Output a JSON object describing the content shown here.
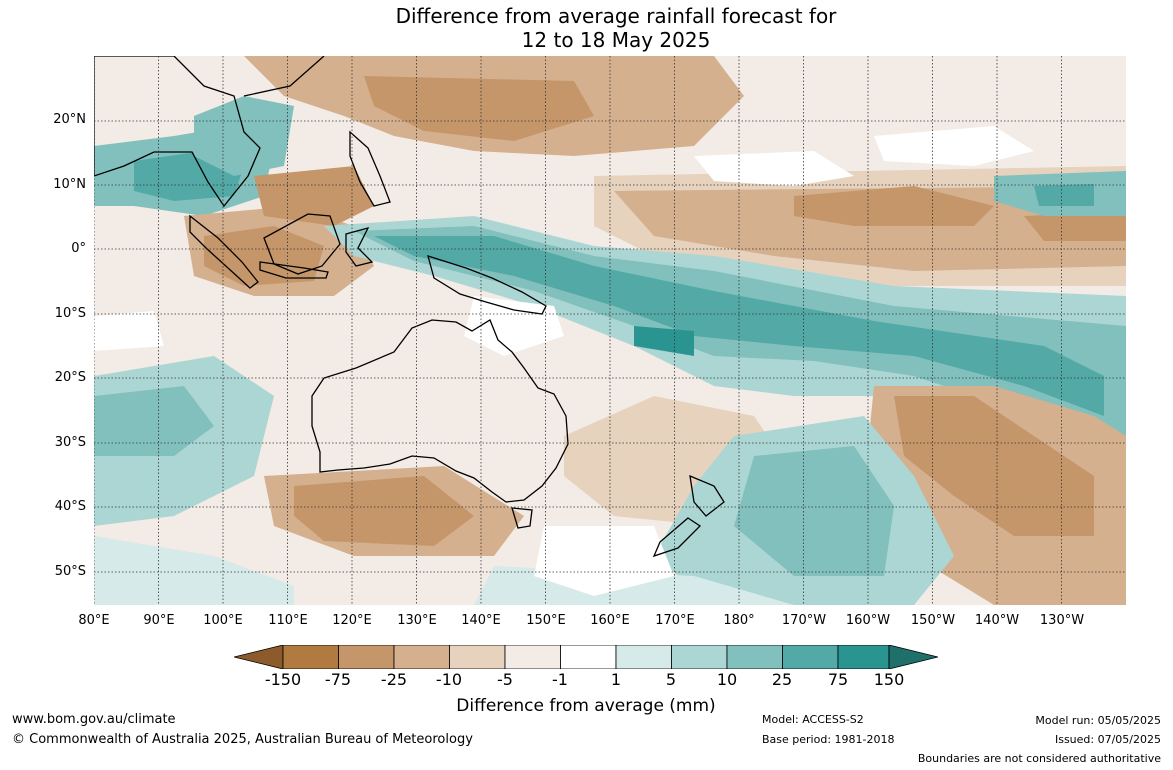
{
  "title": {
    "line1": "Difference from average rainfall forecast for",
    "line2": "12 to 18 May 2025"
  },
  "map": {
    "lat_labels": [
      "20°N",
      "10°N",
      "0°",
      "10°S",
      "20°S",
      "30°S",
      "40°S",
      "50°S"
    ],
    "lon_labels": [
      "80°E",
      "90°E",
      "100°E",
      "110°E",
      "120°E",
      "130°E",
      "140°E",
      "150°E",
      "160°E",
      "170°E",
      "180°",
      "170°W",
      "160°W",
      "150°W",
      "140°W",
      "130°W"
    ],
    "gridlines": true
  },
  "colorbar": {
    "ticks": [
      "-150",
      "-75",
      "-25",
      "-10",
      "-5",
      "-1",
      "1",
      "5",
      "10",
      "25",
      "75",
      "150"
    ],
    "colors": [
      "#8c5a2b",
      "#b07a41",
      "#c5966a",
      "#d4b08f",
      "#e6d2bd",
      "#f3ebe5",
      "#ffffff",
      "#d6eae9",
      "#acd6d4",
      "#81c0bd",
      "#52a9a6",
      "#2a9590",
      "#1f6f6b"
    ],
    "title": "Difference from average (mm)"
  },
  "footer": {
    "website": "www.bom.gov.au/climate",
    "copyright": "© Commonwealth of Australia 2025, Australian Bureau of Meteorology",
    "model": "Model: ACCESS-S2",
    "base_period": "Base period: 1981-2018",
    "model_run": "Model run: 05/05/2025",
    "issued": "Issued: 07/05/2025",
    "disclaimer": "Boundaries are not considered authoritative"
  }
}
